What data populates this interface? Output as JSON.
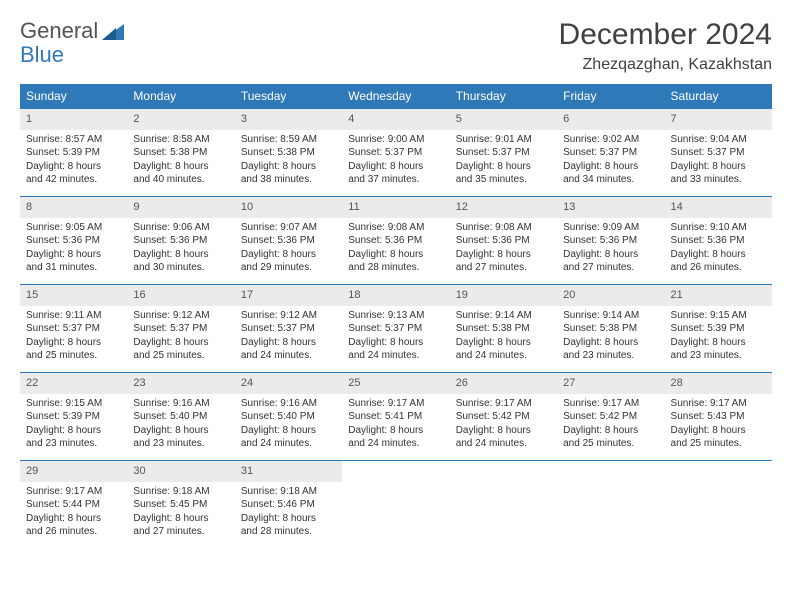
{
  "logo": {
    "word1": "General",
    "word2": "Blue"
  },
  "title": "December 2024",
  "location": "Zhezqazghan, Kazakhstan",
  "colors": {
    "accent": "#2f79b9",
    "header_bg": "#2f79b9",
    "header_text": "#ffffff",
    "daynum_bg": "#ebebeb",
    "body_text": "#333333",
    "title_text": "#414141"
  },
  "typography": {
    "title_fontsize": 30,
    "location_fontsize": 16,
    "logo_fontsize": 22,
    "dayheader_fontsize": 12,
    "daynum_fontsize": 11,
    "cell_fontsize": 10
  },
  "day_headers": [
    "Sunday",
    "Monday",
    "Tuesday",
    "Wednesday",
    "Thursday",
    "Friday",
    "Saturday"
  ],
  "weeks": [
    [
      {
        "n": "1",
        "sr": "Sunrise: 8:57 AM",
        "ss": "Sunset: 5:39 PM",
        "d1": "Daylight: 8 hours",
        "d2": "and 42 minutes."
      },
      {
        "n": "2",
        "sr": "Sunrise: 8:58 AM",
        "ss": "Sunset: 5:38 PM",
        "d1": "Daylight: 8 hours",
        "d2": "and 40 minutes."
      },
      {
        "n": "3",
        "sr": "Sunrise: 8:59 AM",
        "ss": "Sunset: 5:38 PM",
        "d1": "Daylight: 8 hours",
        "d2": "and 38 minutes."
      },
      {
        "n": "4",
        "sr": "Sunrise: 9:00 AM",
        "ss": "Sunset: 5:37 PM",
        "d1": "Daylight: 8 hours",
        "d2": "and 37 minutes."
      },
      {
        "n": "5",
        "sr": "Sunrise: 9:01 AM",
        "ss": "Sunset: 5:37 PM",
        "d1": "Daylight: 8 hours",
        "d2": "and 35 minutes."
      },
      {
        "n": "6",
        "sr": "Sunrise: 9:02 AM",
        "ss": "Sunset: 5:37 PM",
        "d1": "Daylight: 8 hours",
        "d2": "and 34 minutes."
      },
      {
        "n": "7",
        "sr": "Sunrise: 9:04 AM",
        "ss": "Sunset: 5:37 PM",
        "d1": "Daylight: 8 hours",
        "d2": "and 33 minutes."
      }
    ],
    [
      {
        "n": "8",
        "sr": "Sunrise: 9:05 AM",
        "ss": "Sunset: 5:36 PM",
        "d1": "Daylight: 8 hours",
        "d2": "and 31 minutes."
      },
      {
        "n": "9",
        "sr": "Sunrise: 9:06 AM",
        "ss": "Sunset: 5:36 PM",
        "d1": "Daylight: 8 hours",
        "d2": "and 30 minutes."
      },
      {
        "n": "10",
        "sr": "Sunrise: 9:07 AM",
        "ss": "Sunset: 5:36 PM",
        "d1": "Daylight: 8 hours",
        "d2": "and 29 minutes."
      },
      {
        "n": "11",
        "sr": "Sunrise: 9:08 AM",
        "ss": "Sunset: 5:36 PM",
        "d1": "Daylight: 8 hours",
        "d2": "and 28 minutes."
      },
      {
        "n": "12",
        "sr": "Sunrise: 9:08 AM",
        "ss": "Sunset: 5:36 PM",
        "d1": "Daylight: 8 hours",
        "d2": "and 27 minutes."
      },
      {
        "n": "13",
        "sr": "Sunrise: 9:09 AM",
        "ss": "Sunset: 5:36 PM",
        "d1": "Daylight: 8 hours",
        "d2": "and 27 minutes."
      },
      {
        "n": "14",
        "sr": "Sunrise: 9:10 AM",
        "ss": "Sunset: 5:36 PM",
        "d1": "Daylight: 8 hours",
        "d2": "and 26 minutes."
      }
    ],
    [
      {
        "n": "15",
        "sr": "Sunrise: 9:11 AM",
        "ss": "Sunset: 5:37 PM",
        "d1": "Daylight: 8 hours",
        "d2": "and 25 minutes."
      },
      {
        "n": "16",
        "sr": "Sunrise: 9:12 AM",
        "ss": "Sunset: 5:37 PM",
        "d1": "Daylight: 8 hours",
        "d2": "and 25 minutes."
      },
      {
        "n": "17",
        "sr": "Sunrise: 9:12 AM",
        "ss": "Sunset: 5:37 PM",
        "d1": "Daylight: 8 hours",
        "d2": "and 24 minutes."
      },
      {
        "n": "18",
        "sr": "Sunrise: 9:13 AM",
        "ss": "Sunset: 5:37 PM",
        "d1": "Daylight: 8 hours",
        "d2": "and 24 minutes."
      },
      {
        "n": "19",
        "sr": "Sunrise: 9:14 AM",
        "ss": "Sunset: 5:38 PM",
        "d1": "Daylight: 8 hours",
        "d2": "and 24 minutes."
      },
      {
        "n": "20",
        "sr": "Sunrise: 9:14 AM",
        "ss": "Sunset: 5:38 PM",
        "d1": "Daylight: 8 hours",
        "d2": "and 23 minutes."
      },
      {
        "n": "21",
        "sr": "Sunrise: 9:15 AM",
        "ss": "Sunset: 5:39 PM",
        "d1": "Daylight: 8 hours",
        "d2": "and 23 minutes."
      }
    ],
    [
      {
        "n": "22",
        "sr": "Sunrise: 9:15 AM",
        "ss": "Sunset: 5:39 PM",
        "d1": "Daylight: 8 hours",
        "d2": "and 23 minutes."
      },
      {
        "n": "23",
        "sr": "Sunrise: 9:16 AM",
        "ss": "Sunset: 5:40 PM",
        "d1": "Daylight: 8 hours",
        "d2": "and 23 minutes."
      },
      {
        "n": "24",
        "sr": "Sunrise: 9:16 AM",
        "ss": "Sunset: 5:40 PM",
        "d1": "Daylight: 8 hours",
        "d2": "and 24 minutes."
      },
      {
        "n": "25",
        "sr": "Sunrise: 9:17 AM",
        "ss": "Sunset: 5:41 PM",
        "d1": "Daylight: 8 hours",
        "d2": "and 24 minutes."
      },
      {
        "n": "26",
        "sr": "Sunrise: 9:17 AM",
        "ss": "Sunset: 5:42 PM",
        "d1": "Daylight: 8 hours",
        "d2": "and 24 minutes."
      },
      {
        "n": "27",
        "sr": "Sunrise: 9:17 AM",
        "ss": "Sunset: 5:42 PM",
        "d1": "Daylight: 8 hours",
        "d2": "and 25 minutes."
      },
      {
        "n": "28",
        "sr": "Sunrise: 9:17 AM",
        "ss": "Sunset: 5:43 PM",
        "d1": "Daylight: 8 hours",
        "d2": "and 25 minutes."
      }
    ],
    [
      {
        "n": "29",
        "sr": "Sunrise: 9:17 AM",
        "ss": "Sunset: 5:44 PM",
        "d1": "Daylight: 8 hours",
        "d2": "and 26 minutes."
      },
      {
        "n": "30",
        "sr": "Sunrise: 9:18 AM",
        "ss": "Sunset: 5:45 PM",
        "d1": "Daylight: 8 hours",
        "d2": "and 27 minutes."
      },
      {
        "n": "31",
        "sr": "Sunrise: 9:18 AM",
        "ss": "Sunset: 5:46 PM",
        "d1": "Daylight: 8 hours",
        "d2": "and 28 minutes."
      },
      {
        "n": "",
        "sr": "",
        "ss": "",
        "d1": "",
        "d2": ""
      },
      {
        "n": "",
        "sr": "",
        "ss": "",
        "d1": "",
        "d2": ""
      },
      {
        "n": "",
        "sr": "",
        "ss": "",
        "d1": "",
        "d2": ""
      },
      {
        "n": "",
        "sr": "",
        "ss": "",
        "d1": "",
        "d2": ""
      }
    ]
  ]
}
